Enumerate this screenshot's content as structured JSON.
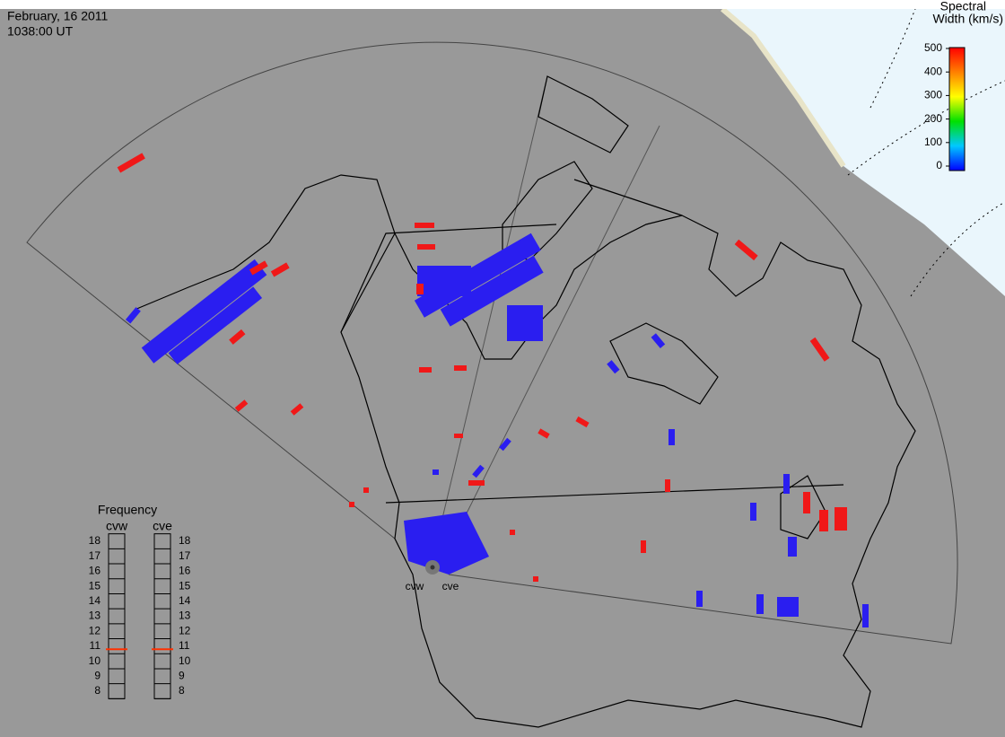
{
  "header": {
    "date": "February, 16 2011",
    "time": "1038:00 UT"
  },
  "colorbar": {
    "title": [
      "Spectral",
      "Width (km/s)"
    ],
    "range": [
      0,
      500
    ],
    "ticks": [
      0,
      100,
      200,
      300,
      400,
      500
    ]
  },
  "frequency": {
    "title": "Frequency",
    "range": [
      8,
      18
    ],
    "ticks": [
      8,
      9,
      10,
      11,
      12,
      13,
      14,
      15,
      16,
      17,
      18
    ],
    "radars": [
      {
        "name": "cvw",
        "value": 10.8
      },
      {
        "name": "cve",
        "value": 10.8
      }
    ]
  },
  "sites": [
    "cvw",
    "cve"
  ]
}
